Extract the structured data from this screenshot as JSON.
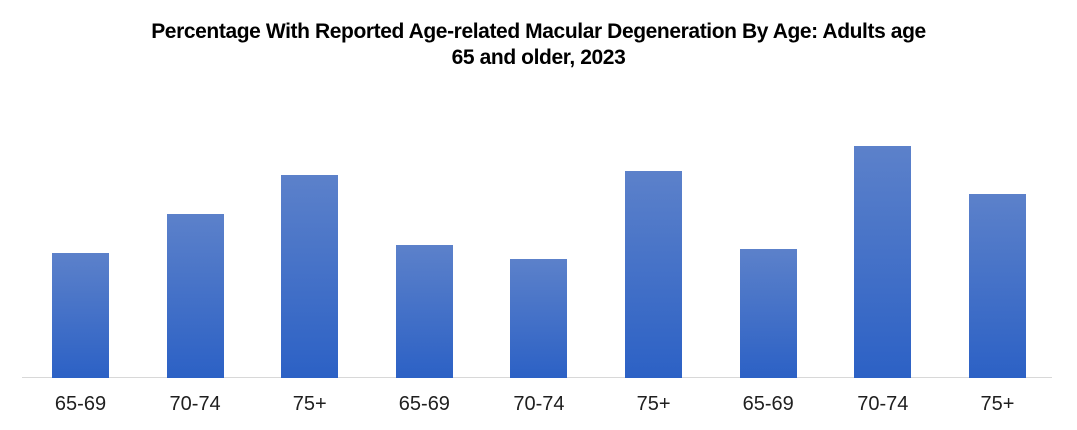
{
  "title": {
    "line1": "Percentage With Reported Age-related Macular Degeneration By Age: Adults age",
    "line2": "65 and older, 2023"
  },
  "chart_data": {
    "type": "bar",
    "title": "Percentage With Reported Age-related Macular Degeneration By Age: Adults age 65 and older, 2023",
    "categories": [
      "65-69",
      "70-74",
      "75+",
      "65-69",
      "70-74",
      "75+",
      "65-69",
      "70-74",
      "75+"
    ],
    "values": [
      8.6,
      11.3,
      14.0,
      9.2,
      8.2,
      14.3,
      8.9,
      16.0,
      12.7
    ],
    "xlabel": "",
    "ylabel": "",
    "ylim": [
      0,
      19.2
    ],
    "grid": false,
    "legend": null,
    "value_axis_visible": false,
    "colors": {
      "bar_gradient_top": "#5c81ca",
      "bar_gradient_bottom": "#2c61c5",
      "axis_line": "#d8d8d8",
      "label_text": "#1f1f1f",
      "title_text": "#000000",
      "background": "#ffffff"
    }
  }
}
